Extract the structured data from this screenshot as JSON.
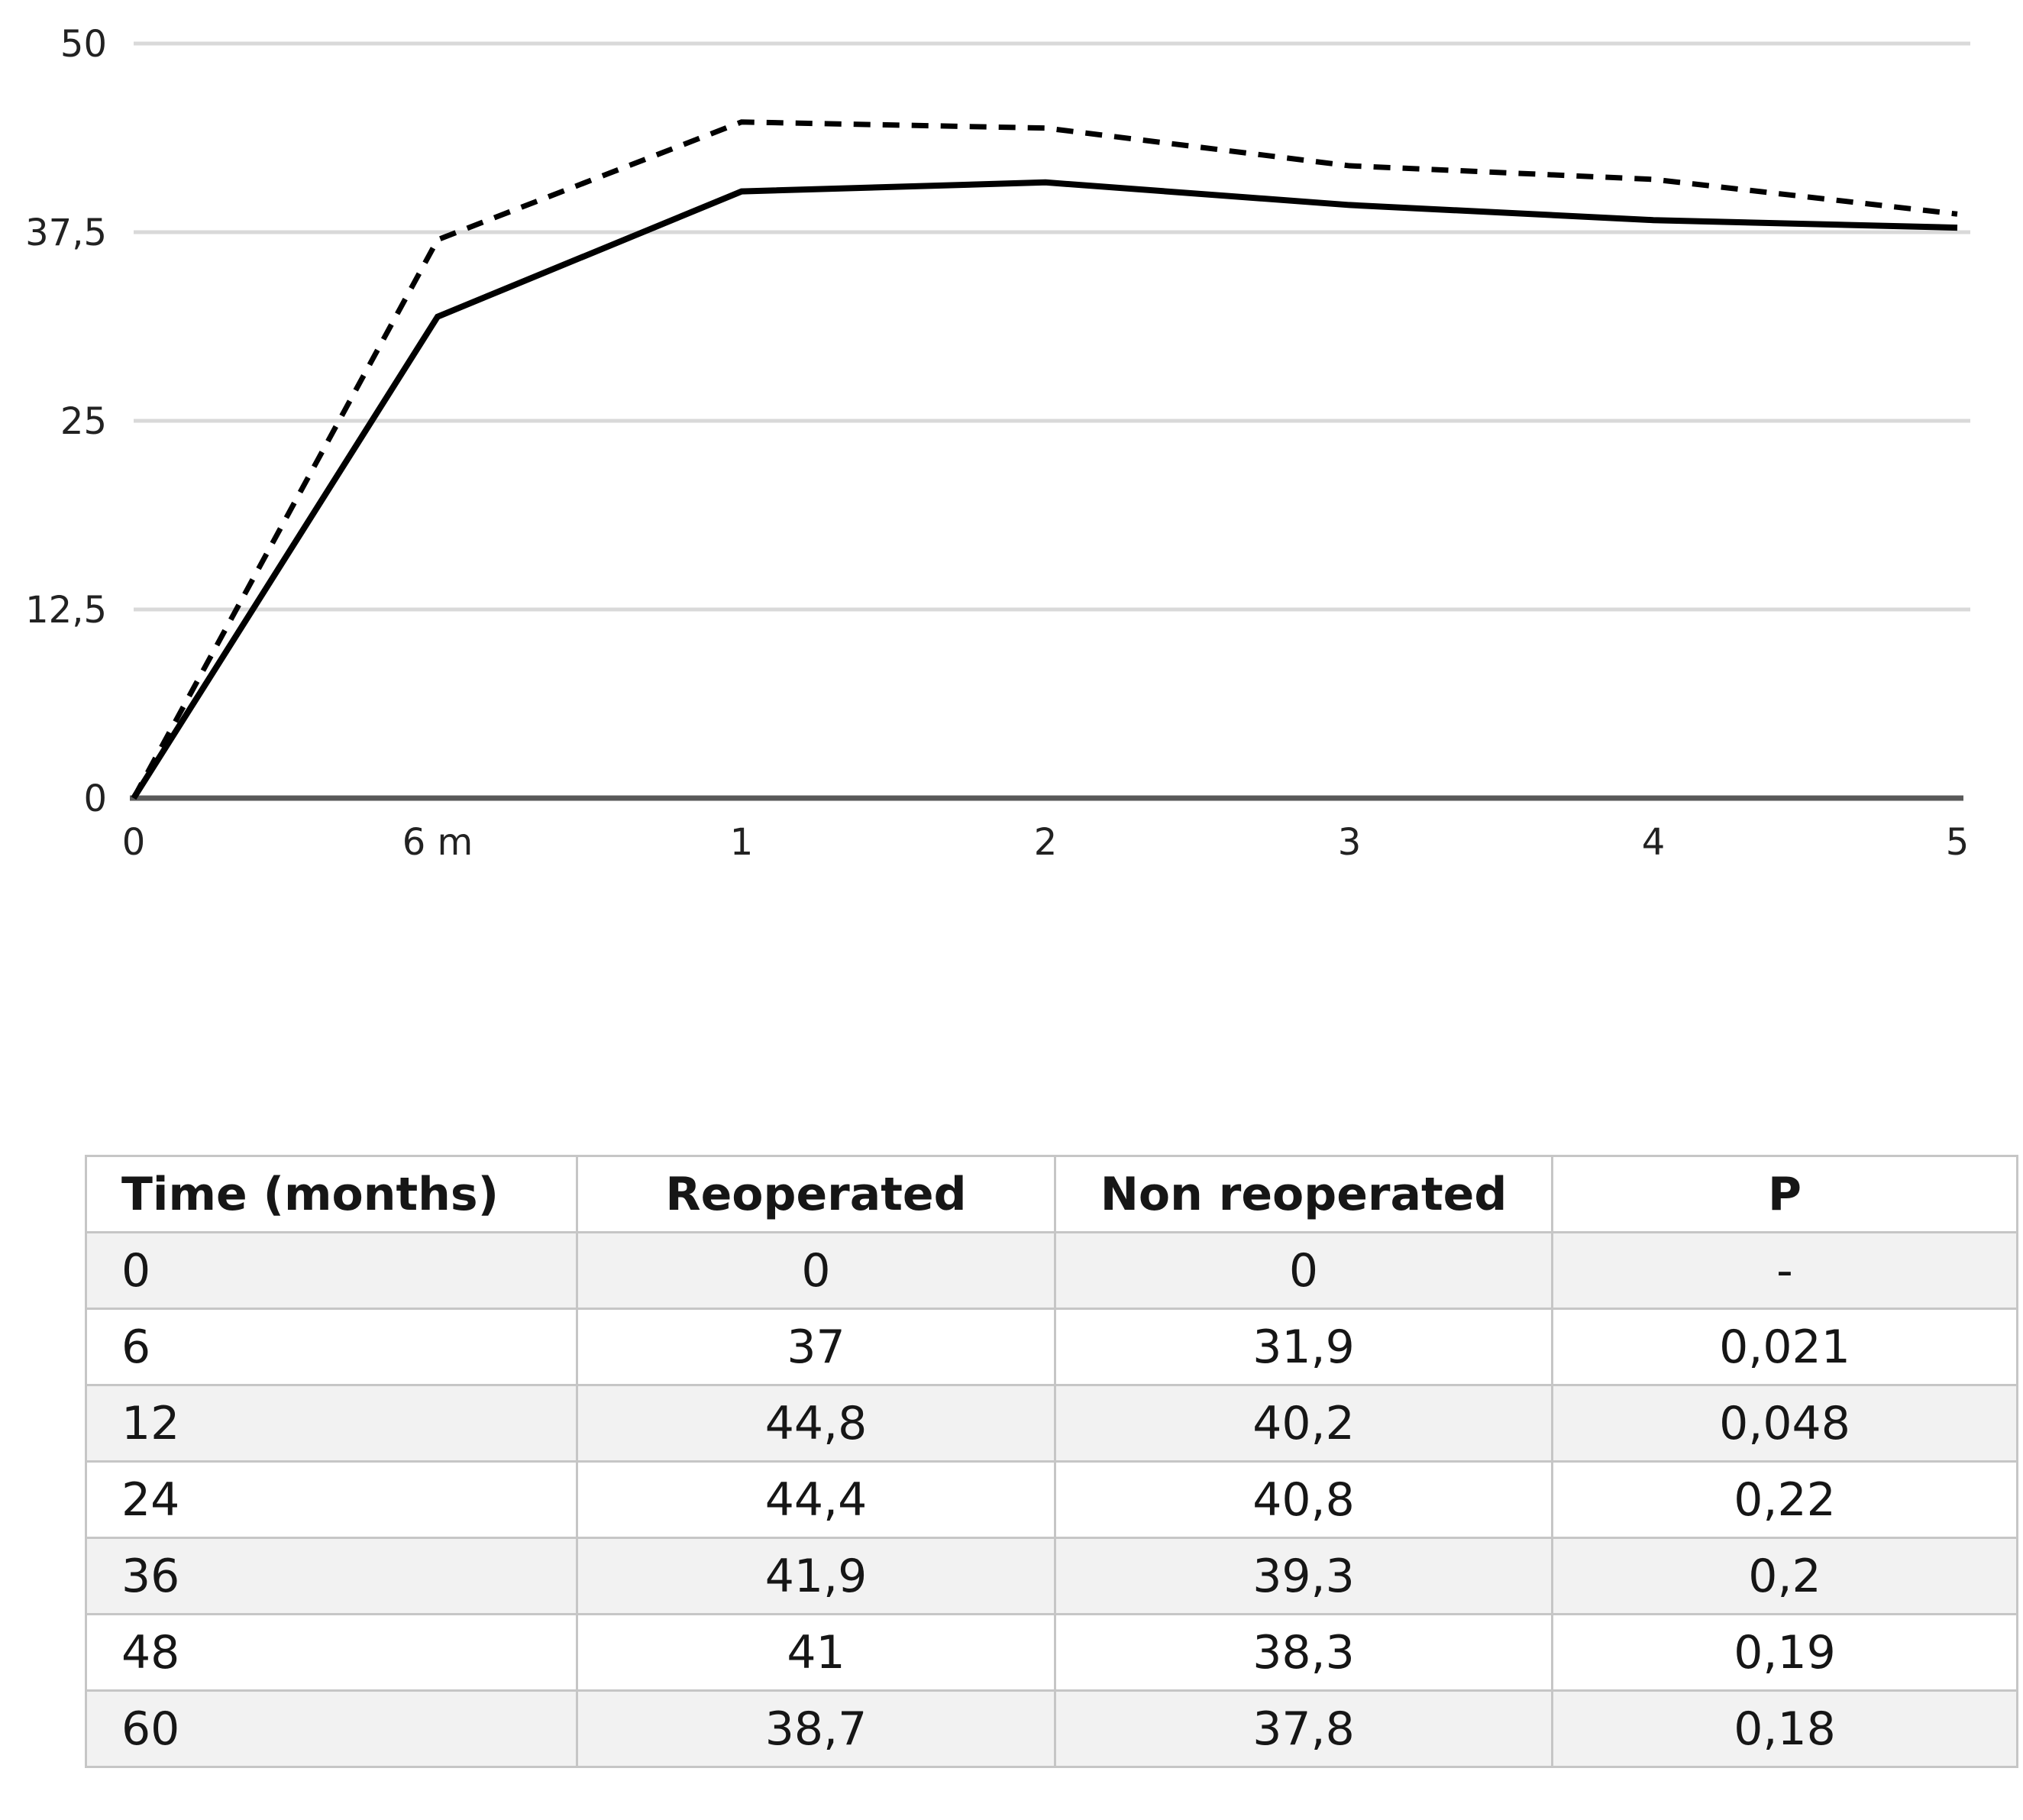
{
  "page": {
    "background": "#ffffff"
  },
  "chart_data": {
    "type": "line",
    "title": "",
    "xlabel": "",
    "ylabel": "",
    "categories": [
      "0",
      "6 m",
      "1",
      "2",
      "3",
      "4",
      "5"
    ],
    "series": [
      {
        "name": "Reoperated",
        "style": "dashed",
        "color": "#000000",
        "values": [
          0,
          37,
          44.8,
          44.4,
          41.9,
          41,
          38.7
        ]
      },
      {
        "name": "Non reoperated",
        "style": "solid",
        "color": "#000000",
        "values": [
          0,
          31.9,
          40.2,
          40.8,
          39.3,
          38.3,
          37.8
        ]
      }
    ],
    "ylim": [
      0,
      50
    ],
    "yticks": [
      {
        "value": 0,
        "label": "0"
      },
      {
        "value": 12.5,
        "label": "12,5"
      },
      {
        "value": 25,
        "label": "25"
      },
      {
        "value": 37.5,
        "label": "37,5"
      },
      {
        "value": 50,
        "label": "50"
      }
    ],
    "grid": true,
    "legend": "none",
    "gridline_color": "#d9d9d9",
    "axis_color": "#595959",
    "tick_label_color": "#222222"
  },
  "table": {
    "columns": [
      "Time (months)",
      "Reoperated",
      "Non reoperated",
      "P"
    ],
    "rows": [
      [
        "0",
        "0",
        "0",
        "-"
      ],
      [
        "6",
        "37",
        "31,9",
        "0,021"
      ],
      [
        "12",
        "44,8",
        "40,2",
        "0,048"
      ],
      [
        "24",
        "44,4",
        "40,8",
        "0,22"
      ],
      [
        "36",
        "41,9",
        "39,3",
        "0,2"
      ],
      [
        "48",
        "41",
        "38,3",
        "0,19"
      ],
      [
        "60",
        "38,7",
        "37,8",
        "0,18"
      ]
    ],
    "zebra_color": "#f2f2f2",
    "border_color": "#c6c6c6"
  }
}
